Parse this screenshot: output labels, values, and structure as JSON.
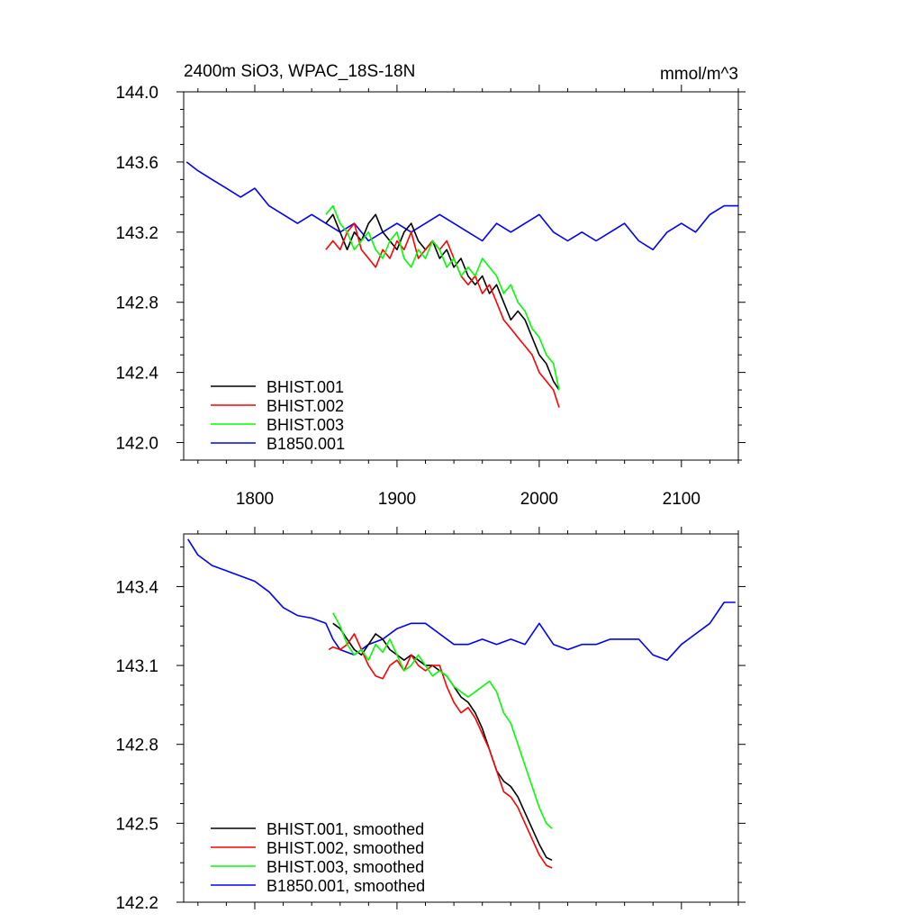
{
  "chart_data": [
    {
      "type": "line",
      "title": "2400m SiO3, WPAC_18S-18N",
      "units": "mmol/m^3",
      "xlim": [
        1750,
        2140
      ],
      "ylim": [
        141.9,
        144.0
      ],
      "xticks": [
        1800,
        1900,
        2000,
        2100
      ],
      "xtick_labels": [
        "1800",
        "1900",
        "2000",
        "2100"
      ],
      "yticks": [
        142.0,
        142.4,
        142.8,
        143.2,
        143.6,
        144.0
      ],
      "ytick_labels": [
        "142.0",
        "142.4",
        "142.8",
        "143.2",
        "143.6",
        "144.0"
      ],
      "legend_position": "bottom-left",
      "series": [
        {
          "name": "BHIST.001",
          "color": "#000000",
          "x": [
            1850,
            1855,
            1860,
            1865,
            1870,
            1875,
            1880,
            1885,
            1890,
            1895,
            1900,
            1905,
            1910,
            1915,
            1920,
            1925,
            1930,
            1935,
            1940,
            1945,
            1950,
            1955,
            1960,
            1965,
            1970,
            1975,
            1980,
            1985,
            1990,
            1995,
            2000,
            2005,
            2010,
            2014
          ],
          "y": [
            143.25,
            143.3,
            143.2,
            143.1,
            143.2,
            143.15,
            143.25,
            143.3,
            143.2,
            143.15,
            143.1,
            143.2,
            143.25,
            143.15,
            143.1,
            143.15,
            143.05,
            143.1,
            143.0,
            143.05,
            142.95,
            142.9,
            142.95,
            142.85,
            142.9,
            142.8,
            142.7,
            142.75,
            142.7,
            142.6,
            142.5,
            142.45,
            142.35,
            142.3
          ]
        },
        {
          "name": "BHIST.002",
          "color": "#ff0000",
          "x": [
            1850,
            1855,
            1860,
            1865,
            1870,
            1875,
            1880,
            1885,
            1890,
            1895,
            1900,
            1905,
            1910,
            1915,
            1920,
            1925,
            1930,
            1935,
            1940,
            1945,
            1950,
            1955,
            1960,
            1965,
            1970,
            1975,
            1980,
            1985,
            1990,
            1995,
            2000,
            2005,
            2010,
            2014
          ],
          "y": [
            143.1,
            143.15,
            143.1,
            143.2,
            143.25,
            143.1,
            143.05,
            143.0,
            143.1,
            143.05,
            143.15,
            143.1,
            143.2,
            143.05,
            143.1,
            143.15,
            143.1,
            143.15,
            143.05,
            142.95,
            142.9,
            142.95,
            142.85,
            142.9,
            142.8,
            142.7,
            142.65,
            142.6,
            142.55,
            142.5,
            142.4,
            142.35,
            142.3,
            142.2
          ]
        },
        {
          "name": "BHIST.003",
          "color": "#00ff00",
          "x": [
            1850,
            1855,
            1860,
            1865,
            1870,
            1875,
            1880,
            1885,
            1890,
            1895,
            1900,
            1905,
            1910,
            1915,
            1920,
            1925,
            1930,
            1935,
            1940,
            1945,
            1950,
            1955,
            1960,
            1965,
            1970,
            1975,
            1980,
            1985,
            1990,
            1995,
            2000,
            2005,
            2010,
            2014
          ],
          "y": [
            143.3,
            143.35,
            143.25,
            143.2,
            143.1,
            143.15,
            143.2,
            143.1,
            143.05,
            143.15,
            143.2,
            143.05,
            143.0,
            143.1,
            143.05,
            143.15,
            143.1,
            143.0,
            143.05,
            142.95,
            143.0,
            142.95,
            143.05,
            143.0,
            142.95,
            142.85,
            142.9,
            142.8,
            142.75,
            142.65,
            142.6,
            142.5,
            142.45,
            142.3
          ]
        },
        {
          "name": "B1850.001",
          "color": "#0000ff",
          "x": [
            1752,
            1760,
            1770,
            1780,
            1790,
            1800,
            1810,
            1820,
            1830,
            1840,
            1850,
            1860,
            1870,
            1880,
            1890,
            1900,
            1910,
            1920,
            1930,
            1940,
            1950,
            1960,
            1970,
            1980,
            1990,
            2000,
            2010,
            2020,
            2030,
            2040,
            2050,
            2060,
            2070,
            2080,
            2090,
            2100,
            2110,
            2120,
            2130,
            2140
          ],
          "y": [
            143.6,
            143.55,
            143.5,
            143.45,
            143.4,
            143.45,
            143.35,
            143.3,
            143.25,
            143.3,
            143.25,
            143.2,
            143.25,
            143.15,
            143.2,
            143.25,
            143.2,
            143.25,
            143.3,
            143.25,
            143.2,
            143.15,
            143.25,
            143.2,
            143.25,
            143.3,
            143.2,
            143.15,
            143.2,
            143.15,
            143.2,
            143.25,
            143.15,
            143.1,
            143.2,
            143.25,
            143.2,
            143.3,
            143.35,
            143.35
          ]
        }
      ]
    },
    {
      "type": "line",
      "xlim": [
        1750,
        2140
      ],
      "ylim": [
        142.2,
        143.6
      ],
      "yticks": [
        142.2,
        142.5,
        142.8,
        143.1,
        143.4
      ],
      "ytick_labels": [
        "142.2",
        "142.5",
        "142.8",
        "143.1",
        "143.4"
      ],
      "legend_position": "bottom-left",
      "series": [
        {
          "name": "BHIST.001, smoothed",
          "color": "#000000",
          "x": [
            1855,
            1860,
            1865,
            1870,
            1875,
            1880,
            1885,
            1890,
            1895,
            1900,
            1905,
            1910,
            1915,
            1920,
            1925,
            1930,
            1935,
            1940,
            1945,
            1950,
            1955,
            1960,
            1965,
            1970,
            1975,
            1980,
            1985,
            1990,
            1995,
            2000,
            2005,
            2009
          ],
          "y": [
            143.26,
            143.24,
            143.2,
            143.16,
            143.14,
            143.18,
            143.22,
            143.2,
            143.16,
            143.14,
            143.12,
            143.14,
            143.12,
            143.1,
            143.1,
            143.08,
            143.06,
            143.02,
            142.98,
            142.96,
            142.92,
            142.86,
            142.78,
            142.7,
            142.66,
            142.64,
            142.6,
            142.54,
            142.48,
            142.42,
            142.37,
            142.36
          ]
        },
        {
          "name": "BHIST.002, smoothed",
          "color": "#ff0000",
          "x": [
            1852,
            1855,
            1860,
            1865,
            1870,
            1875,
            1880,
            1885,
            1890,
            1895,
            1900,
            1905,
            1910,
            1915,
            1920,
            1925,
            1930,
            1935,
            1940,
            1945,
            1950,
            1955,
            1960,
            1965,
            1970,
            1975,
            1980,
            1985,
            1990,
            1995,
            2000,
            2005,
            2009
          ],
          "y": [
            143.16,
            143.17,
            143.16,
            143.18,
            143.22,
            143.16,
            143.1,
            143.06,
            143.05,
            143.1,
            143.12,
            143.08,
            143.14,
            143.1,
            143.08,
            143.1,
            143.1,
            143.02,
            142.96,
            142.92,
            142.94,
            142.9,
            142.84,
            142.78,
            142.7,
            142.62,
            142.6,
            142.56,
            142.5,
            142.44,
            142.38,
            142.34,
            142.33
          ]
        },
        {
          "name": "BHIST.003, smoothed",
          "color": "#00ff00",
          "x": [
            1855,
            1860,
            1865,
            1870,
            1875,
            1880,
            1885,
            1890,
            1895,
            1900,
            1905,
            1910,
            1915,
            1920,
            1925,
            1930,
            1935,
            1940,
            1945,
            1950,
            1955,
            1960,
            1965,
            1970,
            1975,
            1980,
            1985,
            1990,
            1995,
            2000,
            2005,
            2009
          ],
          "y": [
            143.3,
            143.25,
            143.18,
            143.14,
            143.16,
            143.12,
            143.18,
            143.15,
            143.2,
            143.14,
            143.08,
            143.1,
            143.14,
            143.1,
            143.06,
            143.08,
            143.06,
            143.02,
            143.0,
            142.98,
            143.0,
            143.02,
            143.04,
            143.0,
            142.92,
            142.88,
            142.8,
            142.72,
            142.64,
            142.56,
            142.5,
            142.48
          ]
        },
        {
          "name": "B1850.001, smoothed",
          "color": "#0000ff",
          "x": [
            1753,
            1760,
            1770,
            1780,
            1790,
            1800,
            1810,
            1820,
            1830,
            1840,
            1850,
            1855,
            1860,
            1870,
            1880,
            1890,
            1900,
            1910,
            1920,
            1930,
            1940,
            1950,
            1960,
            1970,
            1980,
            1990,
            2000,
            2010,
            2020,
            2030,
            2040,
            2050,
            2060,
            2070,
            2080,
            2090,
            2100,
            2110,
            2120,
            2130,
            2138
          ],
          "y": [
            143.58,
            143.52,
            143.48,
            143.46,
            143.44,
            143.42,
            143.38,
            143.32,
            143.29,
            143.28,
            143.26,
            143.2,
            143.16,
            143.14,
            143.18,
            143.2,
            143.24,
            143.26,
            143.26,
            143.22,
            143.18,
            143.18,
            143.2,
            143.18,
            143.2,
            143.18,
            143.26,
            143.18,
            143.16,
            143.18,
            143.18,
            143.2,
            143.2,
            143.2,
            143.14,
            143.12,
            143.18,
            143.22,
            143.26,
            143.34,
            143.34
          ]
        }
      ]
    }
  ]
}
